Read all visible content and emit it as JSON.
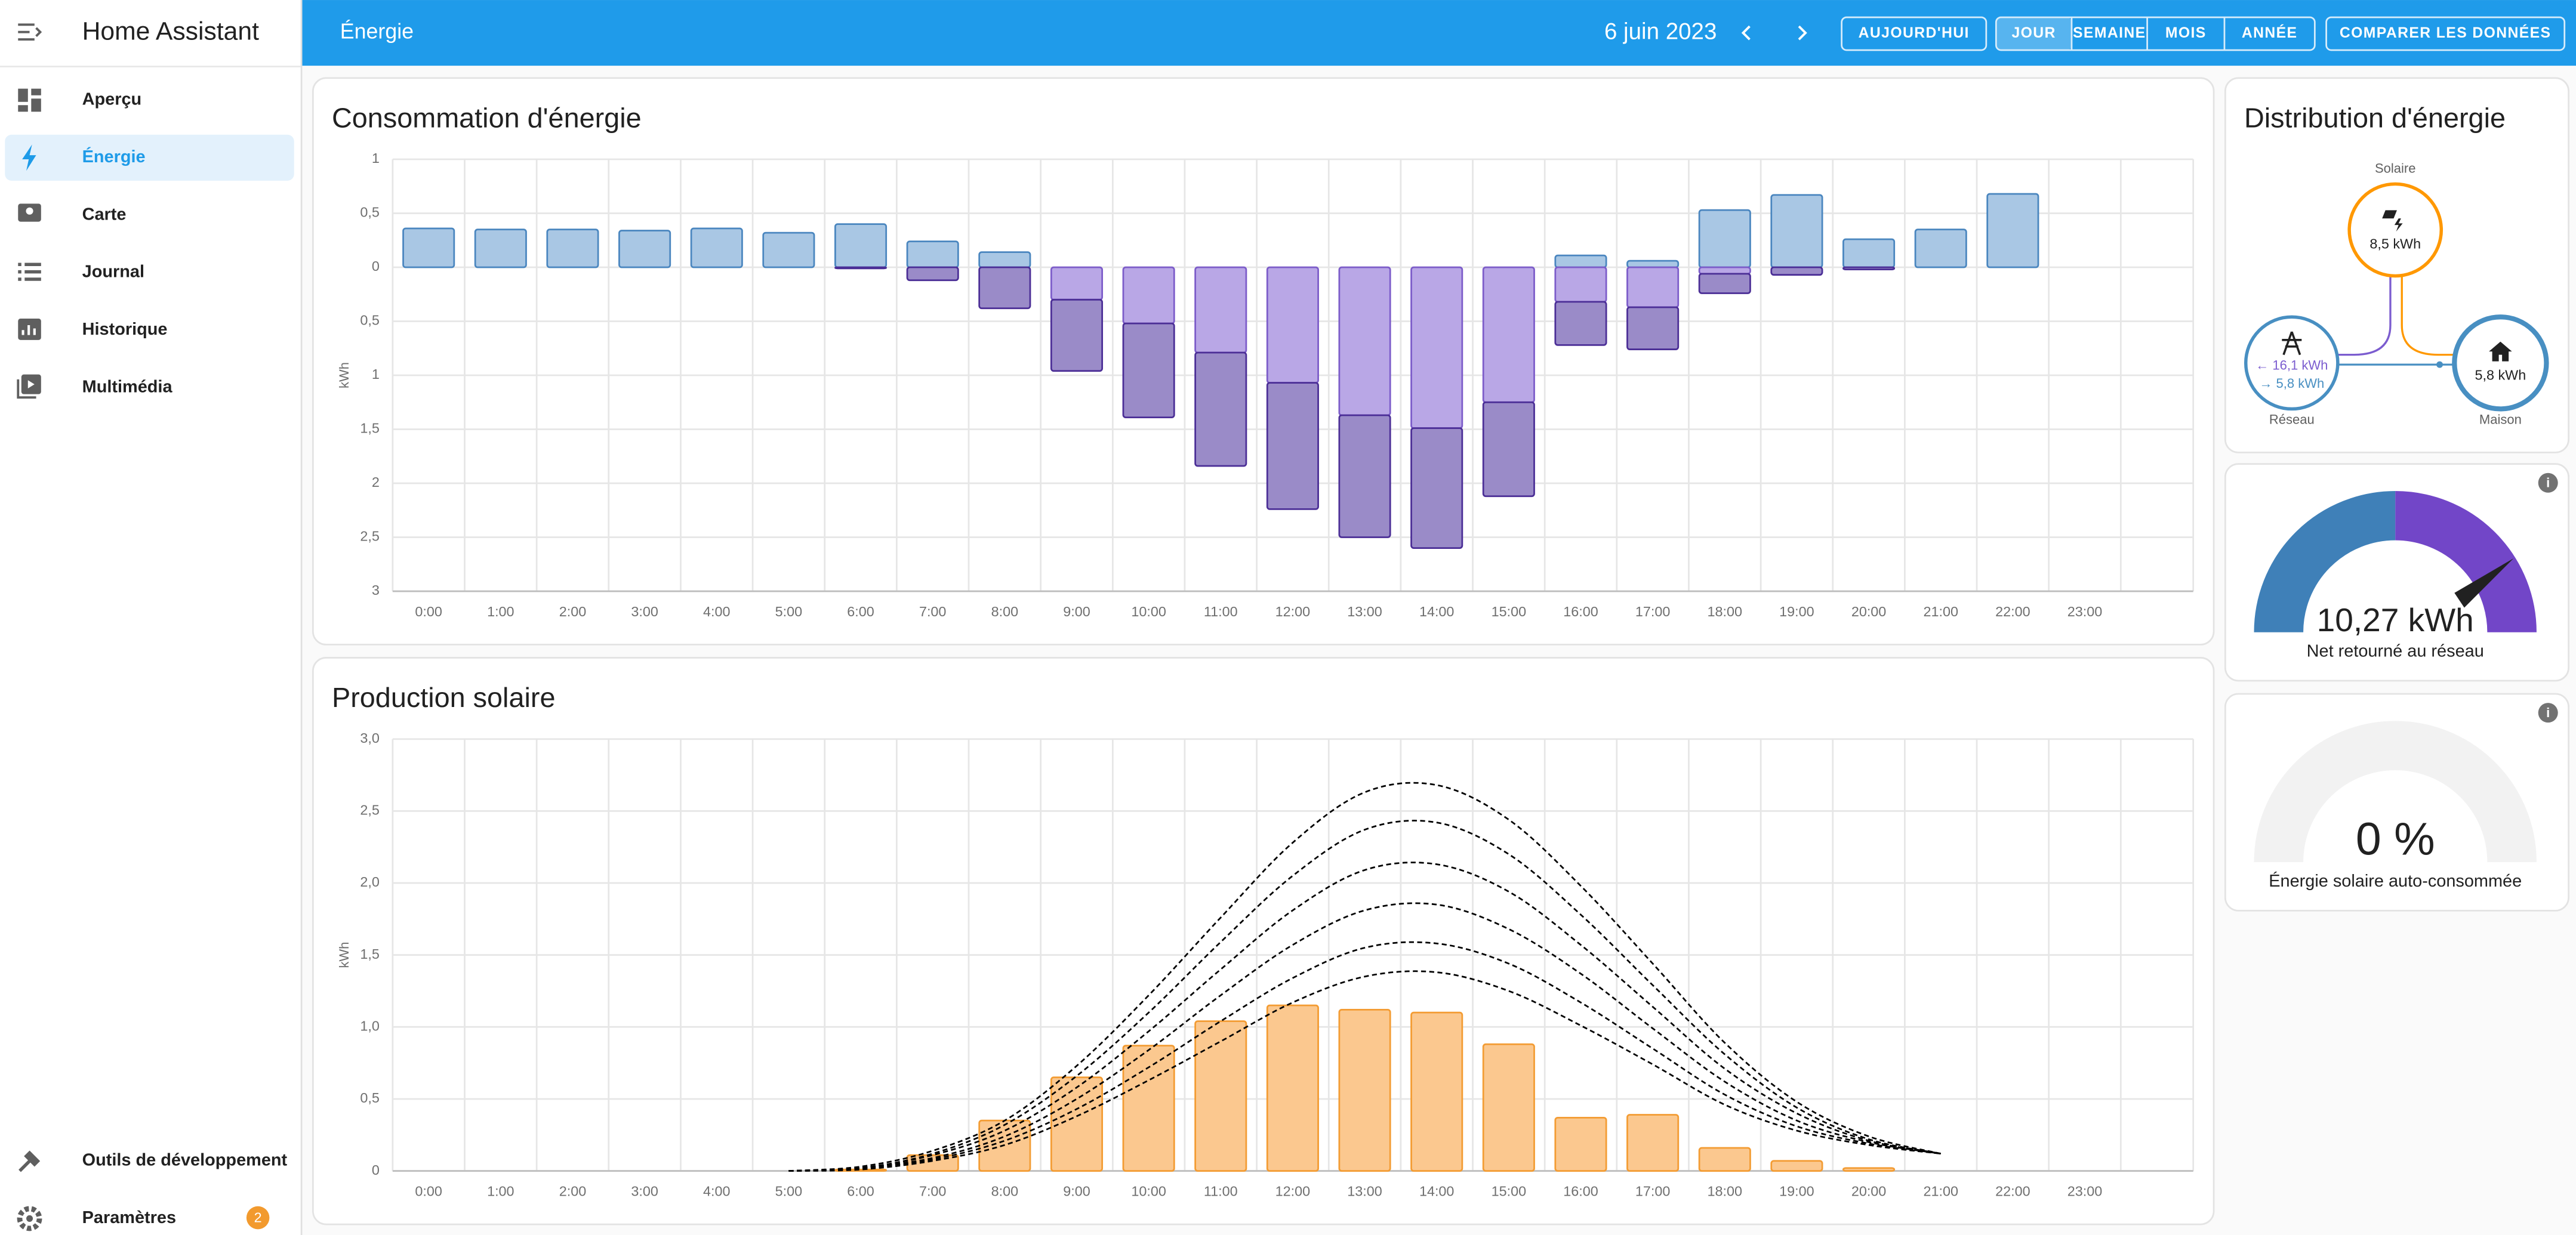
{
  "sidebar": {
    "title": "Home Assistant",
    "items": [
      "Aperçu",
      "Énergie",
      "Carte",
      "Journal",
      "Historique",
      "Multimédia"
    ],
    "bottom_items": [
      "Outils de développement",
      "Paramètres"
    ],
    "badge": "2"
  },
  "toolbar": {
    "title": "Énergie",
    "date": "6 juin 2023",
    "today": "AUJOURD'HUI",
    "periods": [
      "JOUR",
      "SEMAINE",
      "MOIS",
      "ANNÉE"
    ],
    "compare": "COMPARER LES DONNÉES"
  },
  "chart_data": [
    {
      "type": "bar",
      "title": "Consommation d'énergie",
      "ylabel": "kWh",
      "categories": [
        "0:00",
        "1:00",
        "2:00",
        "3:00",
        "4:00",
        "5:00",
        "6:00",
        "7:00",
        "8:00",
        "9:00",
        "10:00",
        "11:00",
        "12:00",
        "13:00",
        "14:00",
        "15:00",
        "16:00",
        "17:00",
        "18:00",
        "19:00",
        "20:00",
        "21:00",
        "22:00",
        "23:00"
      ],
      "ylim": [
        -3,
        1
      ],
      "yticks": [
        1,
        {
          "value": 0.5,
          "label": "0,5"
        },
        0,
        {
          "value": -0.5,
          "label": "0,5"
        },
        {
          "value": -1,
          "label": "1"
        },
        {
          "value": -1.5,
          "label": "1,5"
        },
        {
          "value": -2,
          "label": "2"
        },
        {
          "value": -2.5,
          "label": "2,5"
        },
        {
          "value": -3,
          "label": "3"
        }
      ],
      "grid": true,
      "series": [
        {
          "color": "#a9c7e4",
          "border_color": "#4a86bf",
          "values": [
            0.36,
            0.35,
            0.35,
            0.34,
            0.36,
            0.32,
            0.4,
            0.24,
            0.14,
            0,
            0,
            0,
            0,
            0,
            0,
            0,
            0.11,
            0.06,
            0.53,
            0.67,
            0.26,
            0.35,
            0.68,
            0
          ]
        },
        {
          "color": "#b9a7e6",
          "border_color": "#7c5cc9",
          "values": [
            0,
            0,
            0,
            0,
            0,
            0,
            0,
            0,
            0,
            -0.3,
            -0.52,
            -0.79,
            -1.07,
            -1.37,
            -1.49,
            -1.25,
            -0.32,
            -0.37,
            -0.06,
            0,
            0,
            0,
            0,
            0
          ]
        },
        {
          "color": "#9a8bc8",
          "border_color": "#4b2e96",
          "values": [
            0,
            0,
            0,
            0,
            0,
            0,
            -0.01,
            -0.12,
            -0.38,
            -0.66,
            -0.87,
            -1.05,
            -1.17,
            -1.13,
            -1.11,
            -0.87,
            -0.4,
            -0.39,
            -0.18,
            -0.07,
            -0.02,
            0,
            0,
            0
          ]
        }
      ]
    },
    {
      "type": "bar",
      "title": "Production solaire",
      "ylabel": "kWh",
      "categories": [
        "0:00",
        "1:00",
        "2:00",
        "3:00",
        "4:00",
        "5:00",
        "6:00",
        "7:00",
        "8:00",
        "9:00",
        "10:00",
        "11:00",
        "12:00",
        "13:00",
        "14:00",
        "15:00",
        "16:00",
        "17:00",
        "18:00",
        "19:00",
        "20:00",
        "21:00",
        "22:00",
        "23:00"
      ],
      "ylim": [
        0,
        3
      ],
      "yticks": [
        0,
        {
          "value": 0.5,
          "label": "0,5"
        },
        {
          "value": 1,
          "label": "1,0"
        },
        {
          "value": 1.5,
          "label": "1,5"
        },
        {
          "value": 2,
          "label": "2,0"
        },
        {
          "value": 2.5,
          "label": "2,5"
        },
        {
          "value": 3,
          "label": "3,0"
        }
      ],
      "grid": true,
      "series": [
        {
          "color": "#fbc88f",
          "border_color": "#f39c33",
          "values": [
            0,
            0,
            0,
            0,
            0,
            0,
            0.01,
            0.11,
            0.35,
            0.65,
            0.87,
            1.04,
            1.15,
            1.12,
            1.1,
            0.88,
            0.37,
            0.39,
            0.16,
            0.07,
            0.02,
            0,
            0,
            0
          ]
        }
      ],
      "forecast": {
        "x": [
          5,
          6,
          7,
          8,
          9,
          10,
          11,
          12,
          13,
          14,
          15,
          16,
          17,
          18,
          19,
          20,
          21
        ],
        "color": "#000000",
        "series": [
          {
            "values": [
              0,
              0.01,
              0.07,
              0.18,
              0.38,
              0.63,
              0.9,
              1.17,
              1.35,
              1.38,
              1.25,
              1.01,
              0.74,
              0.46,
              0.28,
              0.18,
              0.12
            ]
          },
          {
            "values": [
              0,
              0.02,
              0.08,
              0.21,
              0.43,
              0.72,
              1.04,
              1.34,
              1.55,
              1.58,
              1.44,
              1.17,
              0.85,
              0.53,
              0.31,
              0.19,
              0.12
            ]
          },
          {
            "values": [
              0,
              0.02,
              0.09,
              0.24,
              0.5,
              0.84,
              1.22,
              1.57,
              1.81,
              1.85,
              1.68,
              1.37,
              0.99,
              0.62,
              0.35,
              0.2,
              0.12
            ]
          },
          {
            "values": [
              0,
              0.02,
              0.11,
              0.28,
              0.58,
              0.97,
              1.4,
              1.81,
              2.09,
              2.13,
              1.94,
              1.57,
              1.14,
              0.71,
              0.4,
              0.21,
              0.12
            ]
          },
          {
            "values": [
              0,
              0.02,
              0.12,
              0.32,
              0.66,
              1.1,
              1.59,
              2.05,
              2.37,
              2.42,
              2.2,
              1.78,
              1.29,
              0.81,
              0.44,
              0.22,
              0.12
            ]
          },
          {
            "values": [
              0,
              0.03,
              0.14,
              0.35,
              0.73,
              1.22,
              1.76,
              2.28,
              2.63,
              2.68,
              2.44,
              1.98,
              1.44,
              0.89,
              0.48,
              0.24,
              0.12
            ]
          }
        ]
      }
    }
  ],
  "distribution": {
    "title": "Distribution d'énergie",
    "solar_label": "Solaire",
    "solar_value": "8,5 kWh",
    "grid_in": "← 16,1 kWh",
    "grid_out": "→ 5,8 kWh",
    "grid_label": "Réseau",
    "home_value": "5,8 kWh",
    "home_label": "Maison"
  },
  "gauges": [
    {
      "value": "10,27 kWh",
      "label": "Net retourné au réseau"
    },
    {
      "value": "0 %",
      "label": "Énergie solaire auto-consommée"
    }
  ]
}
